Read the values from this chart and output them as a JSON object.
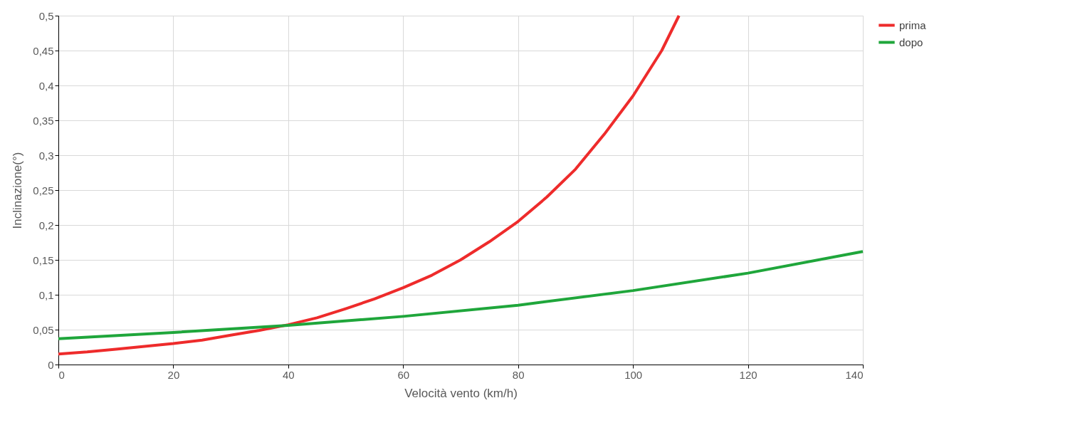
{
  "chart_data": {
    "type": "line",
    "xlabel": "Velocità vento (km/h)",
    "ylabel": "Inclinazione(°)",
    "series": [
      {
        "name": "prima",
        "color": "#ee2b2b",
        "x": [
          0,
          5,
          10,
          15,
          20,
          25,
          30,
          35,
          40,
          45,
          50,
          55,
          60,
          65,
          70,
          75,
          80,
          85,
          90,
          95,
          100,
          105,
          108
        ],
        "values": [
          0.015,
          0.018,
          0.022,
          0.026,
          0.03,
          0.035,
          0.042,
          0.049,
          0.057,
          0.067,
          0.08,
          0.094,
          0.11,
          0.128,
          0.15,
          0.176,
          0.205,
          0.24,
          0.28,
          0.33,
          0.385,
          0.45,
          0.5
        ]
      },
      {
        "name": "dopo",
        "color": "#1fa63b",
        "x": [
          0,
          20,
          40,
          60,
          80,
          100,
          120,
          140
        ],
        "values": [
          0.037,
          0.046,
          0.056,
          0.069,
          0.085,
          0.106,
          0.131,
          0.162
        ]
      }
    ],
    "xlim": [
      0,
      140
    ],
    "xticks": [
      0,
      20,
      40,
      60,
      80,
      100,
      120,
      140
    ],
    "ylim": [
      0,
      0.5
    ],
    "yticks": [
      {
        "value": 0,
        "label": "0"
      },
      {
        "value": 0.05,
        "label": "0,05"
      },
      {
        "value": 0.1,
        "label": "0,1"
      },
      {
        "value": 0.15,
        "label": "0,15"
      },
      {
        "value": 0.2,
        "label": "0,2"
      },
      {
        "value": 0.25,
        "label": "0,25"
      },
      {
        "value": 0.3,
        "label": "0,3"
      },
      {
        "value": 0.35,
        "label": "0,35"
      },
      {
        "value": 0.4,
        "label": "0,4"
      },
      {
        "value": 0.45,
        "label": "0,45"
      },
      {
        "value": 0.5,
        "label": "0,5"
      }
    ],
    "grid": true,
    "legend": "right",
    "marker": "none",
    "line_style": "solid"
  }
}
